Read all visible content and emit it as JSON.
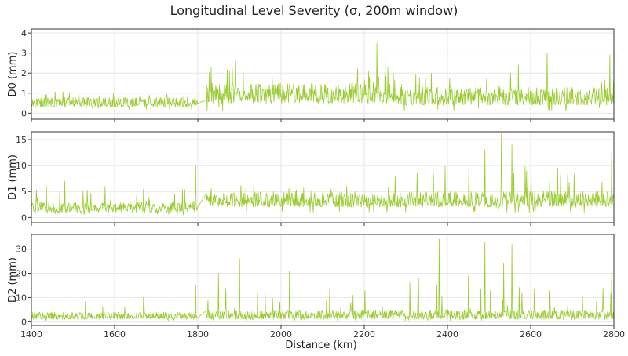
{
  "chart_data": {
    "type": "line",
    "title": "Longitudinal Level Severity (σ, 200m window)",
    "xlabel": "Distance (km)",
    "x_range": [
      1400,
      2800
    ],
    "x_ticks": [
      1400,
      1600,
      1800,
      2000,
      2200,
      2400,
      2600,
      2800
    ],
    "gap_km": [
      1800,
      1820
    ],
    "line_color": "#9acd32",
    "grid": true,
    "shared_x": true,
    "panels": [
      {
        "ylabel": "D0 (mm)",
        "ylim": [
          -0.3,
          4.2
        ],
        "y_ticks": [
          0,
          1,
          2,
          3,
          4
        ],
        "series": [
          {
            "segment": "1400-1800",
            "min": 0.1,
            "typical_low": 0.3,
            "typical_high": 0.8,
            "max": 1.4,
            "trend": "flat ~0.5"
          },
          {
            "segment": "1820-2270",
            "min": 0.1,
            "typical_low": 0.5,
            "typical_high": 1.5,
            "max": 3.5,
            "peaks": [
              {
                "x": 2230,
                "y": 3.5
              },
              {
                "x": 2250,
                "y": 2.9
              },
              {
                "x": 1890,
                "y": 2.6
              }
            ]
          },
          {
            "segment": "2270-2800",
            "min": 0.1,
            "typical_low": 0.4,
            "typical_high": 1.3,
            "max": 3.0,
            "peaks": [
              {
                "x": 2640,
                "y": 3.0
              },
              {
                "x": 2790,
                "y": 2.9
              },
              {
                "x": 2570,
                "y": 2.4
              }
            ]
          }
        ]
      },
      {
        "ylabel": "D1 (mm)",
        "ylim": [
          -1,
          16.5
        ],
        "y_ticks": [
          0,
          5,
          10,
          15
        ],
        "series": [
          {
            "segment": "1400-1800",
            "min": 0.5,
            "typical_low": 1.0,
            "typical_high": 3.0,
            "max": 10.0,
            "peaks": [
              {
                "x": 1795,
                "y": 10.0
              },
              {
                "x": 1480,
                "y": 7.0
              }
            ]
          },
          {
            "segment": "1820-2270",
            "min": 1.0,
            "typical_low": 2.0,
            "typical_high": 5.0,
            "max": 8.5
          },
          {
            "segment": "2270-2800",
            "min": 1.0,
            "typical_low": 2.0,
            "typical_high": 5.0,
            "max": 16.0,
            "peaks": [
              {
                "x": 2530,
                "y": 16.0
              },
              {
                "x": 2555,
                "y": 14.0
              },
              {
                "x": 2795,
                "y": 12.5
              },
              {
                "x": 2490,
                "y": 13.0
              }
            ]
          }
        ]
      },
      {
        "ylabel": "D2 (mm)",
        "ylim": [
          -1.5,
          36
        ],
        "y_ticks": [
          0,
          10,
          20,
          30
        ],
        "series": [
          {
            "segment": "1400-1800",
            "min": 0.5,
            "typical_low": 1.0,
            "typical_high": 4.0,
            "max": 15.0,
            "peaks": [
              {
                "x": 1795,
                "y": 15.0
              },
              {
                "x": 1670,
                "y": 10.0
              }
            ]
          },
          {
            "segment": "1820-2270",
            "min": 0.5,
            "typical_low": 1.0,
            "typical_high": 5.0,
            "max": 26.0,
            "peaks": [
              {
                "x": 1850,
                "y": 20.0
              },
              {
                "x": 1900,
                "y": 26.0
              },
              {
                "x": 2020,
                "y": 21.0
              }
            ]
          },
          {
            "segment": "2270-2800",
            "min": 0.5,
            "typical_low": 1.0,
            "typical_high": 5.0,
            "max": 34.0,
            "peaks": [
              {
                "x": 2380,
                "y": 34.0
              },
              {
                "x": 2490,
                "y": 33.0
              },
              {
                "x": 2555,
                "y": 32.0
              },
              {
                "x": 2535,
                "y": 24.0
              },
              {
                "x": 2450,
                "y": 19.0
              },
              {
                "x": 2330,
                "y": 18.0
              },
              {
                "x": 2795,
                "y": 20.0
              }
            ]
          }
        ]
      }
    ]
  }
}
